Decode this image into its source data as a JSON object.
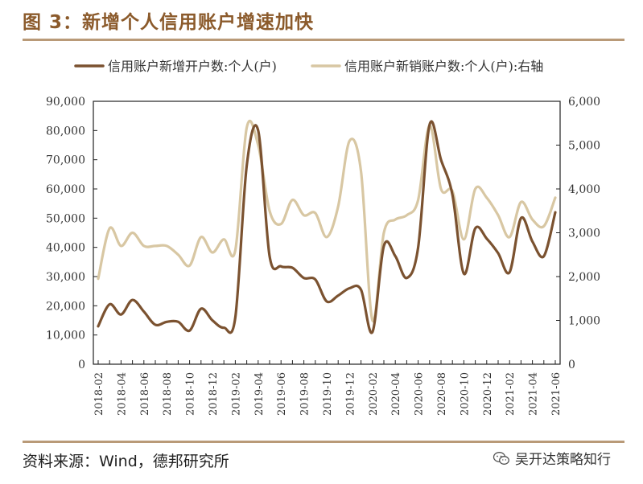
{
  "header": {
    "title": "图 3：新增个人信用账户增速加快"
  },
  "footer": {
    "source": "资料来源：Wind，德邦研究所",
    "watermark": "吴开达策略知行"
  },
  "icons": {
    "watermark_icon": "wechat-icon"
  },
  "chart_data": {
    "type": "line",
    "title": "图 3：新增个人信用账户增速加快",
    "legend_position": "top",
    "grid": false,
    "x": [
      "2018-02",
      "2018-03",
      "2018-04",
      "2018-05",
      "2018-06",
      "2018-07",
      "2018-08",
      "2018-09",
      "2018-10",
      "2018-11",
      "2018-12",
      "2019-01",
      "2019-02",
      "2019-03",
      "2019-04",
      "2019-05",
      "2019-06",
      "2019-07",
      "2019-08",
      "2019-09",
      "2019-10",
      "2019-11",
      "2019-12",
      "2020-01",
      "2020-02",
      "2020-03",
      "2020-04",
      "2020-05",
      "2020-06",
      "2020-07",
      "2020-08",
      "2020-09",
      "2020-10",
      "2020-11",
      "2020-12",
      "2021-01",
      "2021-02",
      "2021-03",
      "2021-04",
      "2021-05",
      "2021-06"
    ],
    "x_tick_labels": [
      "2018-02",
      "2018-04",
      "2018-06",
      "2018-08",
      "2018-10",
      "2018-12",
      "2019-02",
      "2019-04",
      "2019-06",
      "2019-08",
      "2019-10",
      "2019-12",
      "2020-02",
      "2020-04",
      "2020-06",
      "2020-08",
      "2020-10",
      "2020-12",
      "2021-02",
      "2021-04",
      "2021-06"
    ],
    "left_axis": {
      "ylim": [
        0,
        90000
      ],
      "ticks": [
        "0",
        "10,000",
        "20,000",
        "30,000",
        "40,000",
        "50,000",
        "60,000",
        "70,000",
        "80,000",
        "90,000"
      ]
    },
    "right_axis": {
      "ylim": [
        0,
        6000
      ],
      "ticks": [
        "0",
        "1,000",
        "2,000",
        "3,000",
        "4,000",
        "5,000",
        "6,000"
      ]
    },
    "series": [
      {
        "name": "信用账户新增开户数:个人(户)",
        "axis": "left",
        "color": "#7b5230",
        "values": [
          13000,
          20500,
          17000,
          22000,
          18000,
          13500,
          14500,
          14500,
          11500,
          19000,
          15000,
          12500,
          16000,
          68000,
          80000,
          37000,
          33500,
          33000,
          29500,
          29000,
          21500,
          23500,
          26000,
          25500,
          11000,
          40500,
          37000,
          29500,
          40000,
          82000,
          70000,
          58000,
          31000,
          46500,
          43000,
          38000,
          31500,
          50000,
          42000,
          37000,
          52000
        ]
      },
      {
        "name": "信用账户新销账户数:个人(户):右轴",
        "axis": "right",
        "color": "#d8c7a3",
        "values": [
          1950,
          3100,
          2700,
          3000,
          2700,
          2700,
          2700,
          2500,
          2250,
          2900,
          2550,
          2850,
          2600,
          5400,
          5000,
          3500,
          3200,
          3750,
          3400,
          3450,
          2900,
          3600,
          5100,
          4400,
          1000,
          3000,
          3300,
          3400,
          3750,
          5450,
          4000,
          3950,
          2850,
          4000,
          3800,
          3400,
          2900,
          3700,
          3300,
          3150,
          3800
        ]
      }
    ]
  }
}
